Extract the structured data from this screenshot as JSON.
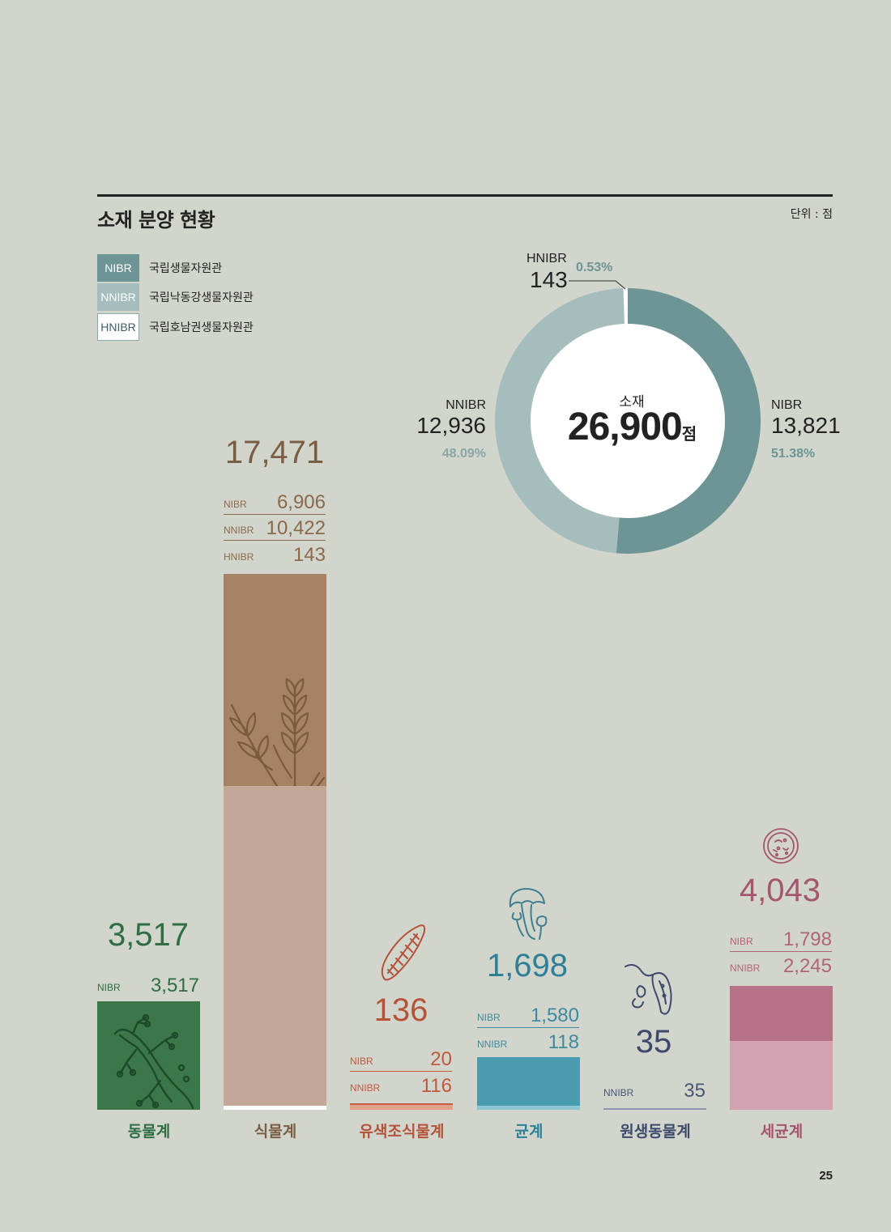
{
  "header": {
    "title": "소재 분양 현황",
    "unit": "단위 : 점"
  },
  "legend": [
    {
      "code": "NIBR",
      "name": "국립생물자원관",
      "color": "#6e9595"
    },
    {
      "code": "NNIBR",
      "name": "국립낙동강생물자원관",
      "color": "#a5bdbd"
    },
    {
      "code": "HNIBR",
      "name": "국립호남권생물자원관",
      "color": "#ffffff"
    }
  ],
  "donut": {
    "center_label": "소재",
    "center_value": "26,900",
    "center_suffix": "점",
    "nibr": {
      "code": "NIBR",
      "value": "13,821",
      "pct": "51.38%"
    },
    "nnibr": {
      "code": "NNIBR",
      "value": "12,936",
      "pct": "48.09%"
    },
    "hnibr": {
      "code": "HNIBR",
      "value": "143",
      "pct": "0.53%"
    }
  },
  "categories": [
    {
      "name": "동물계",
      "total": "3,517",
      "rows": [
        {
          "k": "NIBR",
          "v": "3,517"
        }
      ],
      "color": "#2f6e44",
      "icon": "lizard-icon"
    },
    {
      "name": "식물계",
      "total": "17,471",
      "rows": [
        {
          "k": "NIBR",
          "v": "6,906"
        },
        {
          "k": "NNIBR",
          "v": "10,422"
        },
        {
          "k": "HNIBR",
          "v": "143"
        }
      ],
      "color": "#8a6a4a",
      "icon": "wheat-icon"
    },
    {
      "name": "유색조식물계",
      "total": "136",
      "rows": [
        {
          "k": "NIBR",
          "v": "20"
        },
        {
          "k": "NNIBR",
          "v": "116"
        }
      ],
      "color": "#b4533a",
      "icon": "diatom-icon"
    },
    {
      "name": "균계",
      "total": "1,698",
      "rows": [
        {
          "k": "NIBR",
          "v": "1,580"
        },
        {
          "k": "NNIBR",
          "v": "118"
        }
      ],
      "color": "#3f8aa0",
      "icon": "mushroom-icon"
    },
    {
      "name": "원생동물계",
      "total": "35",
      "rows": [
        {
          "k": "NNIBR",
          "v": "35"
        }
      ],
      "color": "#3d4a6c",
      "icon": "protozoa-icon"
    },
    {
      "name": "세균계",
      "total": "4,043",
      "rows": [
        {
          "k": "NIBR",
          "v": "1,798"
        },
        {
          "k": "NNIBR",
          "v": "2,245"
        }
      ],
      "color": "#a4566e",
      "icon": "bacteria-dish-icon"
    }
  ],
  "chart_data": [
    {
      "type": "pie",
      "categories": [
        "NIBR",
        "NNIBR",
        "HNIBR"
      ],
      "values": [
        13821,
        12936,
        143
      ],
      "percent": [
        51.38,
        48.09,
        0.53
      ],
      "colors": [
        "#6e9595",
        "#a5bdbd",
        "#ffffff"
      ]
    },
    {
      "type": "bar",
      "stacked": true,
      "categories": [
        "동물계",
        "식물계",
        "유색조식물계",
        "균계",
        "원생동물계",
        "세균계"
      ],
      "series": [
        {
          "name": "NIBR",
          "values": [
            3517,
            6906,
            20,
            1580,
            0,
            1798
          ]
        },
        {
          "name": "NNIBR",
          "values": [
            0,
            10422,
            116,
            118,
            35,
            2245
          ]
        },
        {
          "name": "HNIBR",
          "values": [
            0,
            143,
            0,
            0,
            0,
            0
          ]
        }
      ],
      "totals": [
        3517,
        17471,
        136,
        1698,
        35,
        4043
      ]
    }
  ],
  "page_number": "25"
}
